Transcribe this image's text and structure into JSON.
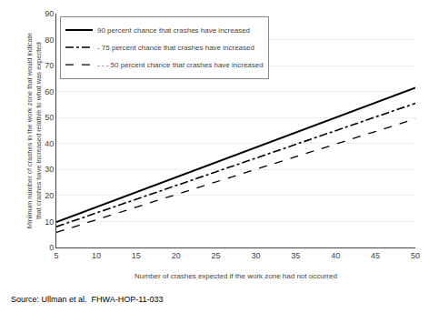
{
  "chart_data": {
    "type": "line",
    "xlabel": "Number of crashes expected if the work zone had not occurred",
    "ylabel": "Minimum number of crashes in the work zone that would indicate\nthat crashes have increased relative to what was expected",
    "source": "Source: Ullman et al.  FHWA-HOP-11-033",
    "x": [
      5,
      50
    ],
    "series": [
      {
        "name": "90 percent chance that crashes have increased",
        "color": "#000000",
        "line_style": "solid",
        "values": [
          9.8,
          61.5
        ]
      },
      {
        "name": "- 75 percent chance that crashes have increased",
        "color": "#000000",
        "line_style": "dashdot",
        "values": [
          8.0,
          55.5
        ]
      },
      {
        "name": "- - - 50 percent chance that crashes have increased",
        "color": "#000000",
        "line_style": "dashed",
        "values": [
          5.8,
          49.5
        ]
      }
    ],
    "xlim": [
      5,
      50
    ],
    "ylim": [
      0,
      90
    ],
    "xticks": [
      5,
      10,
      15,
      20,
      25,
      30,
      35,
      40,
      45,
      50
    ],
    "yticks": [
      0,
      10,
      20,
      30,
      40,
      50,
      60,
      70,
      80,
      90
    ],
    "grid": "y",
    "legend": "upper left"
  }
}
